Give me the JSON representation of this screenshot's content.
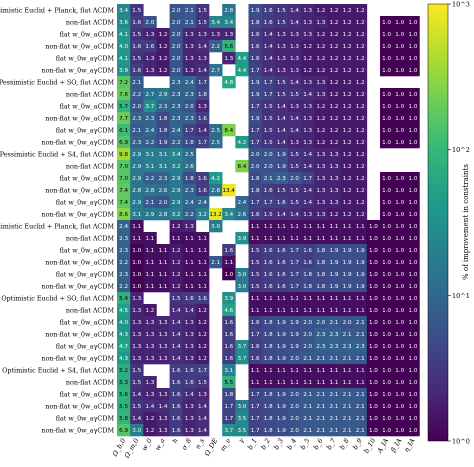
{
  "chart_data": {
    "type": "heatmap",
    "colorbar": {
      "label": "% of improvement in constraints",
      "scale": "log",
      "range": [
        1,
        1000
      ],
      "ticks": [
        "10^0",
        "10^1",
        "10^2",
        "10^3"
      ],
      "colormap": [
        "#440154",
        "#482878",
        "#3e4989",
        "#31688e",
        "#26828e",
        "#1f9e89",
        "#35b779",
        "#6ece58",
        "#b5de2b",
        "#fde725"
      ]
    },
    "columns": [
      "Ω_b,0",
      "Ω_m,0",
      "w_0",
      "w_a",
      "h",
      "σ_8",
      "n_s",
      "Ω_DE",
      "m_ν",
      "γ",
      "b_1",
      "b_2",
      "b_3",
      "b_4",
      "b_5",
      "b_6",
      "b_7",
      "b_8",
      "b_9",
      "b_10",
      "A_IA",
      "β_IA",
      "η_IA"
    ],
    "rows": [
      "Pessimistic Euclid + Planck, flat ΛCDM",
      "non-flat ΛCDM",
      "flat w_0w_aCDM",
      "non-flat w_0w_aCDM",
      "flat w_0w_aγCDM",
      "non-flat w_0w_aγCDM",
      "Pessimistic Euclid + SO, flat ΛCDM",
      "non-flat ΛCDM",
      "flat w_0w_aCDM",
      "non-flat w_0w_aCDM",
      "flat w_0w_aγCDM",
      "non-flat w_0w_aγCDM",
      "Pessimistic Euclid + S4, flat ΛCDM",
      "non-flat ΛCDM",
      "flat w_0w_aCDM",
      "non-flat w_0w_aCDM",
      "flat w_0w_aγCDM",
      "non-flat w_0w_aγCDM",
      "Optimistic Euclid + Planck, flat ΛCDM",
      "non-flat ΛCDM",
      "flat w_0w_aCDM",
      "non-flat w_0w_aCDM",
      "flat w_0w_aγCDM",
      "non-flat w_0w_aγCDM",
      "Optimistic Euclid + SO, flat ΛCDM",
      "non-flat ΛCDM",
      "flat w_0w_aCDM",
      "non-flat w_0w_aCDM",
      "flat w_0w_aγCDM",
      "non-flat w_0w_aγCDM",
      "Optimistic Euclid + S4, flat ΛCDM",
      "non-flat ΛCDM",
      "flat w_0w_aCDM",
      "non-flat w_0w_aCDM",
      "flat w_0w_aγCDM",
      "non-flat w_0w_aγCDM"
    ],
    "values": [
      [
        3.4,
        1.5,
        null,
        null,
        2.0,
        2.1,
        1.5,
        null,
        2.8,
        null,
        1.9,
        1.6,
        1.5,
        1.4,
        1.3,
        1.2,
        1.2,
        1.2,
        1.2,
        null,
        null,
        null,
        null
      ],
      [
        3.6,
        1.6,
        2.0,
        null,
        2.0,
        2.1,
        1.5,
        3.4,
        3.4,
        null,
        1.8,
        1.6,
        1.5,
        1.4,
        1.3,
        1.3,
        1.2,
        1.2,
        1.2,
        null,
        1.0,
        1.0,
        1.0
      ],
      [
        4.1,
        1.5,
        1.3,
        1.2,
        2.0,
        1.3,
        1.3,
        1.3,
        1.3,
        null,
        1.6,
        1.4,
        1.3,
        1.3,
        1.3,
        1.2,
        1.2,
        1.2,
        1.2,
        null,
        1.0,
        1.0,
        1.0
      ],
      [
        4.0,
        1.6,
        1.6,
        1.2,
        2.0,
        1.3,
        1.4,
        2.2,
        5.6,
        null,
        1.6,
        1.4,
        1.3,
        1.3,
        1.2,
        1.2,
        1.2,
        1.2,
        1.2,
        null,
        1.0,
        1.0,
        1.0
      ],
      [
        4.1,
        1.5,
        1.3,
        1.2,
        2.0,
        1.3,
        1.3,
        null,
        1.3,
        4.4,
        1.6,
        1.4,
        1.3,
        1.3,
        1.2,
        1.2,
        1.2,
        1.2,
        1.2,
        null,
        1.0,
        1.0,
        1.0
      ],
      [
        3.9,
        1.6,
        1.3,
        1.2,
        2.0,
        1.3,
        1.4,
        2.7,
        null,
        4.4,
        1.7,
        1.4,
        1.3,
        1.3,
        1.2,
        1.2,
        1.2,
        1.2,
        1.2,
        null,
        1.0,
        1.0,
        1.0
      ],
      [
        7.2,
        2.1,
        null,
        null,
        2.3,
        2.4,
        1.7,
        null,
        4.8,
        null,
        1.9,
        1.7,
        1.5,
        1.4,
        1.3,
        1.3,
        1.2,
        1.2,
        1.2,
        null,
        null,
        null,
        null
      ],
      [
        7.6,
        2.2,
        2.7,
        2.9,
        2.3,
        2.3,
        1.8,
        null,
        null,
        null,
        1.9,
        1.7,
        1.5,
        1.5,
        1.4,
        1.3,
        1.2,
        1.2,
        1.2,
        null,
        1.0,
        1.0,
        1.0
      ],
      [
        5.7,
        2.0,
        3.7,
        2.3,
        2.3,
        2.0,
        1.3,
        null,
        null,
        null,
        1.7,
        1.5,
        1.4,
        1.3,
        1.3,
        1.2,
        1.2,
        1.2,
        1.2,
        null,
        1.0,
        1.0,
        1.0
      ],
      [
        7.7,
        2.3,
        2.3,
        1.8,
        2.3,
        2.3,
        1.6,
        null,
        null,
        null,
        1.9,
        1.5,
        1.4,
        1.4,
        1.3,
        1.2,
        1.2,
        1.2,
        1.2,
        null,
        1.0,
        1.0,
        1.0
      ],
      [
        6.1,
        2.1,
        2.4,
        1.8,
        2.4,
        1.7,
        1.4,
        2.5,
        8.4,
        null,
        1.7,
        1.5,
        1.4,
        1.4,
        1.3,
        1.2,
        1.2,
        1.2,
        1.2,
        null,
        1.0,
        1.0,
        1.0
      ],
      [
        6.9,
        2.3,
        2.2,
        1.9,
        2.2,
        1.8,
        1.7,
        2.5,
        null,
        4.2,
        1.7,
        1.5,
        1.4,
        1.3,
        1.3,
        1.2,
        1.2,
        1.2,
        1.2,
        null,
        1.0,
        1.0,
        1.0
      ],
      [
        9.8,
        2.9,
        3.1,
        3.1,
        3.4,
        2.5,
        null,
        null,
        null,
        null,
        2.0,
        2.0,
        1.9,
        1.5,
        1.4,
        1.3,
        1.3,
        1.2,
        1.2,
        null,
        null,
        null,
        null
      ],
      [
        7.0,
        2.9,
        3.1,
        3.1,
        3.2,
        2.6,
        null,
        null,
        null,
        8.4,
        2.0,
        2.0,
        1.9,
        1.5,
        1.4,
        1.3,
        1.3,
        1.2,
        1.2,
        null,
        null,
        null,
        null
      ],
      [
        7.0,
        2.9,
        2.2,
        2.3,
        2.9,
        1.8,
        1.6,
        4.2,
        null,
        null,
        1.8,
        2.1,
        2.3,
        2.0,
        1.7,
        1.3,
        1.3,
        1.2,
        1.2,
        null,
        1.0,
        1.0,
        1.0
      ],
      [
        7.4,
        2.8,
        2.8,
        2.6,
        2.9,
        2.3,
        1.6,
        2.8,
        13.4,
        null,
        1.8,
        1.6,
        1.5,
        1.5,
        1.4,
        1.3,
        1.3,
        1.2,
        1.2,
        null,
        1.0,
        1.0,
        1.0
      ],
      [
        7.4,
        2.9,
        2.1,
        2.0,
        2.9,
        2.4,
        2.4,
        null,
        null,
        2.4,
        1.7,
        1.7,
        1.6,
        1.5,
        1.4,
        1.3,
        1.3,
        1.2,
        1.2,
        null,
        1.0,
        1.0,
        1.0
      ],
      [
        8.6,
        3.1,
        2.9,
        2.8,
        3.2,
        2.2,
        3.2,
        13.2,
        3.4,
        2.6,
        1.6,
        1.5,
        1.4,
        1.4,
        1.3,
        1.3,
        1.2,
        1.2,
        1.2,
        null,
        1.0,
        1.0,
        1.0
      ],
      [
        2.4,
        1.1,
        null,
        null,
        1.2,
        1.3,
        null,
        3.0,
        null,
        null,
        1.1,
        1.1,
        1.1,
        1.1,
        1.1,
        1.1,
        1.1,
        1.1,
        1.1,
        1.0,
        1.0,
        1.0,
        1.0
      ],
      [
        2.3,
        1.1,
        1.1,
        null,
        1.1,
        1.1,
        1.1,
        null,
        null,
        3.9,
        1.1,
        1.1,
        1.1,
        1.1,
        1.1,
        1.1,
        1.1,
        1.1,
        1.1,
        1.0,
        1.0,
        1.0,
        1.0
      ],
      [
        2.3,
        1.0,
        1.1,
        1.1,
        1.2,
        1.1,
        1.1,
        null,
        1.6,
        null,
        1.5,
        1.6,
        1.6,
        1.7,
        1.6,
        1.8,
        1.9,
        1.9,
        1.9,
        1.0,
        1.0,
        1.0,
        1.0
      ],
      [
        2.2,
        1.0,
        1.1,
        1.1,
        1.2,
        1.1,
        1.1,
        2.1,
        1.1,
        null,
        1.5,
        1.6,
        1.6,
        1.7,
        1.6,
        1.8,
        1.9,
        1.9,
        1.9,
        1.0,
        1.0,
        1.0,
        1.0
      ],
      [
        2.3,
        1.0,
        1.1,
        1.1,
        1.2,
        1.1,
        1.1,
        null,
        1.0,
        3.0,
        1.5,
        1.6,
        1.6,
        1.7,
        1.8,
        1.8,
        1.9,
        1.9,
        1.9,
        1.0,
        1.0,
        1.0,
        1.0
      ],
      [
        2.2,
        1.0,
        1.1,
        1.1,
        1.2,
        1.1,
        1.1,
        null,
        null,
        3.0,
        1.5,
        1.6,
        1.6,
        1.7,
        1.8,
        1.8,
        1.9,
        1.9,
        1.9,
        1.0,
        1.0,
        1.0,
        1.0
      ],
      [
        5.4,
        1.3,
        null,
        null,
        1.5,
        1.6,
        1.6,
        null,
        3.9,
        null,
        1.1,
        1.1,
        1.1,
        1.1,
        1.1,
        1.1,
        1.1,
        1.1,
        1.1,
        1.0,
        1.0,
        1.0,
        1.0
      ],
      [
        4.5,
        1.3,
        1.2,
        null,
        1.4,
        1.4,
        1.2,
        null,
        4.6,
        null,
        1.1,
        1.1,
        1.1,
        1.1,
        1.1,
        1.1,
        1.1,
        1.1,
        1.1,
        1.0,
        1.0,
        1.0,
        1.0
      ],
      [
        4.0,
        1.3,
        1.3,
        1.3,
        1.4,
        1.3,
        1.2,
        null,
        1.6,
        null,
        1.6,
        1.8,
        1.9,
        1.9,
        2.0,
        2.0,
        2.1,
        2.0,
        2.1,
        1.0,
        1.0,
        1.0,
        1.0
      ],
      [
        4.3,
        1.3,
        1.3,
        1.3,
        1.4,
        1.3,
        1.2,
        null,
        1.6,
        null,
        1.7,
        1.8,
        1.9,
        1.9,
        2.0,
        2.3,
        2.3,
        2.1,
        2.1,
        1.0,
        1.0,
        1.0,
        1.0
      ],
      [
        4.7,
        1.3,
        1.3,
        1.3,
        1.4,
        1.3,
        1.2,
        null,
        1.6,
        3.7,
        1.6,
        1.8,
        1.9,
        1.9,
        2.0,
        2.3,
        2.3,
        2.3,
        2.3,
        1.0,
        1.0,
        1.0,
        1.0
      ],
      [
        4.3,
        1.3,
        1.3,
        1.3,
        1.4,
        1.3,
        1.2,
        null,
        1.6,
        3.7,
        1.6,
        1.8,
        1.9,
        2.0,
        2.1,
        2.1,
        2.1,
        2.1,
        2.1,
        1.0,
        1.0,
        1.0,
        1.0
      ],
      [
        5.2,
        1.5,
        null,
        null,
        1.6,
        1.6,
        1.7,
        null,
        3.1,
        null,
        1.1,
        1.1,
        1.1,
        1.1,
        1.1,
        1.1,
        1.1,
        1.1,
        1.1,
        1.0,
        1.0,
        1.0,
        1.0
      ],
      [
        5.3,
        1.5,
        1.3,
        null,
        1.6,
        1.6,
        1.5,
        null,
        5.5,
        null,
        1.1,
        1.1,
        1.1,
        1.1,
        1.1,
        1.1,
        1.1,
        1.1,
        1.1,
        1.0,
        1.0,
        1.0,
        1.0
      ],
      [
        5.6,
        1.4,
        1.3,
        1.3,
        1.6,
        1.4,
        1.3,
        null,
        1.8,
        null,
        1.7,
        1.8,
        1.9,
        2.0,
        2.1,
        2.1,
        2.1,
        2.1,
        2.1,
        1.0,
        1.0,
        1.0,
        1.0
      ],
      [
        5.5,
        1.5,
        1.4,
        1.4,
        1.6,
        1.3,
        1.4,
        null,
        1.7,
        3.0,
        1.7,
        1.8,
        1.9,
        2.0,
        2.1,
        2.1,
        2.1,
        2.1,
        2.1,
        1.0,
        1.0,
        1.0,
        1.0
      ],
      [
        5.8,
        1.4,
        1.2,
        1.3,
        1.6,
        1.3,
        1.4,
        null,
        1.7,
        3.5,
        1.7,
        1.8,
        1.9,
        2.0,
        2.1,
        2.1,
        2.1,
        2.1,
        2.1,
        1.0,
        1.0,
        1.0,
        1.0
      ],
      [
        6.9,
        3.0,
        1.2,
        1.3,
        1.6,
        1.3,
        1.4,
        null,
        3.7,
        3.5,
        1.7,
        1.8,
        1.9,
        2.0,
        2.1,
        2.1,
        2.1,
        2.1,
        2.1,
        1.0,
        1.0,
        1.0,
        1.0
      ]
    ]
  }
}
